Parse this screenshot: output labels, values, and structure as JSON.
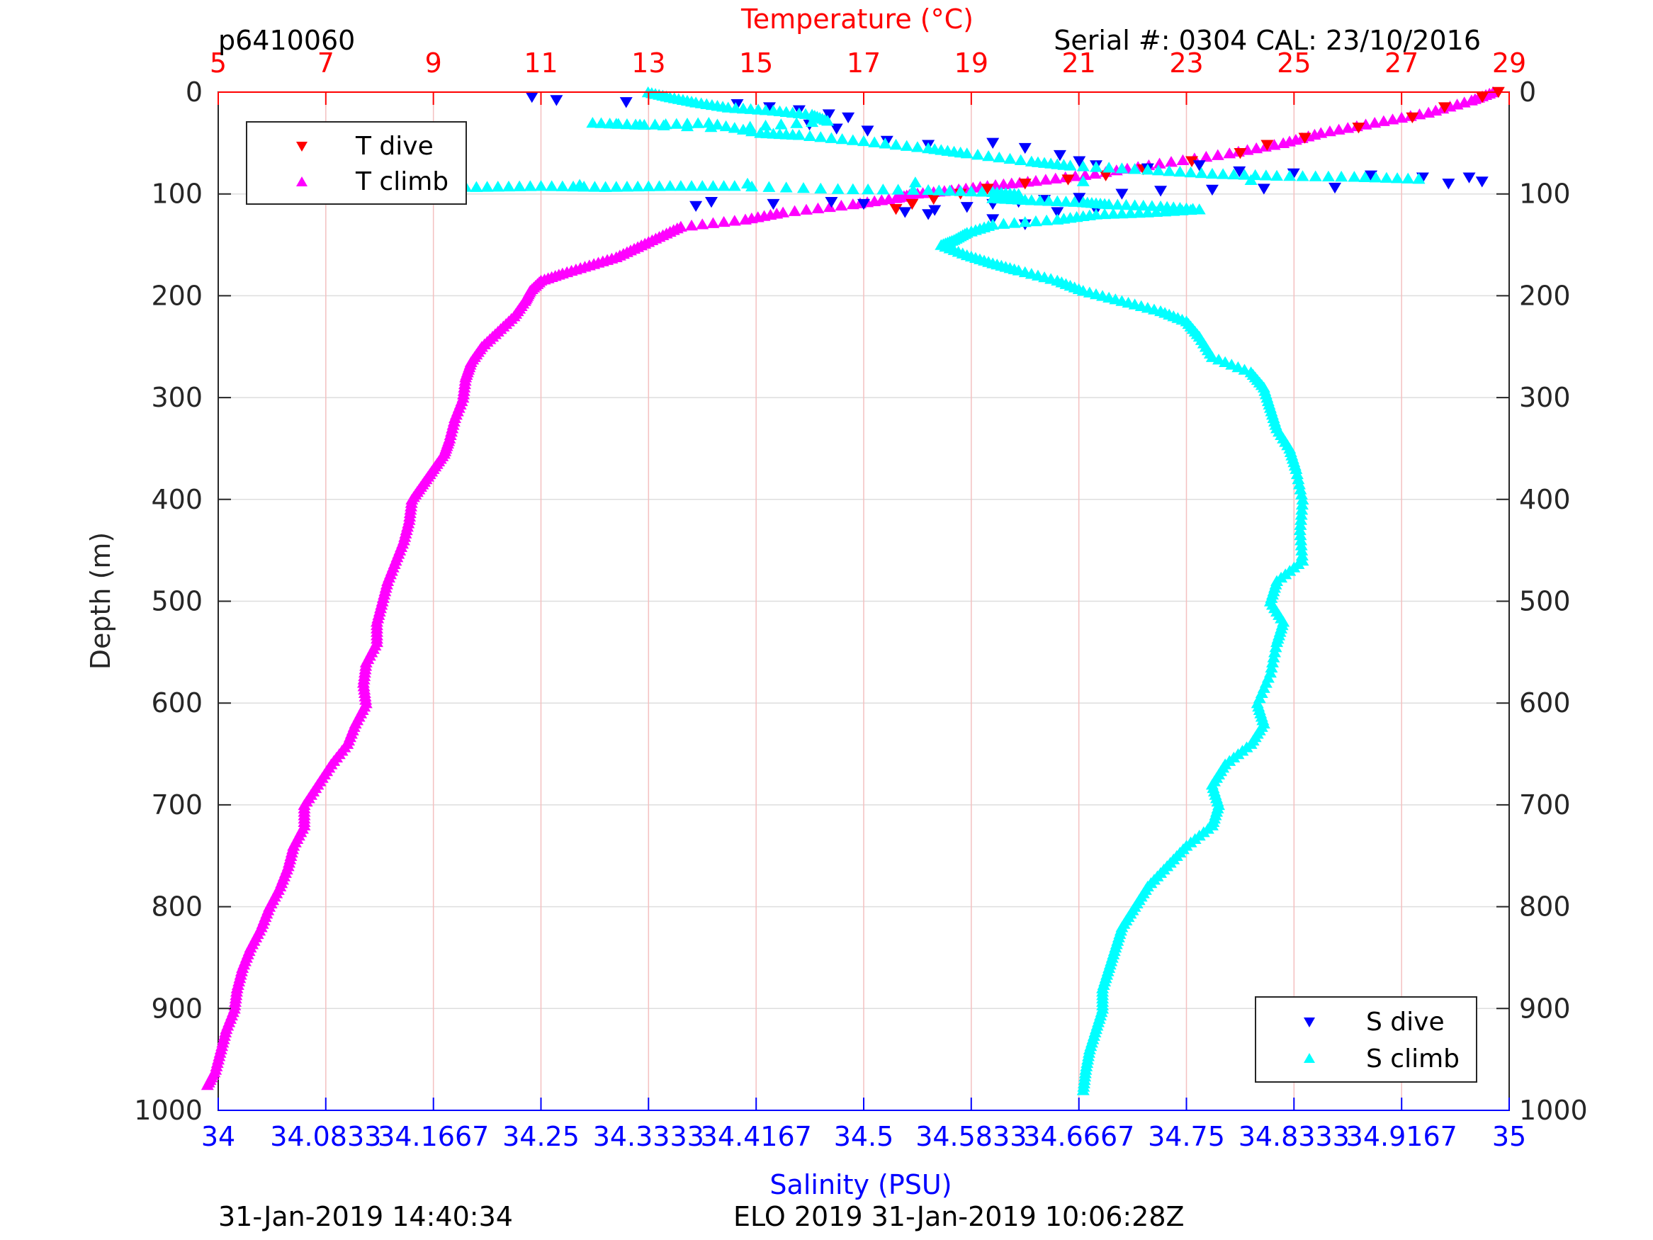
{
  "chart_data": {
    "type": "scatter",
    "title_left": "p6410060",
    "title_right": "Serial #: 0304  CAL: 23/10/2016",
    "ylabel": "Depth (m)",
    "ylim": [
      0,
      1000
    ],
    "y_ticks": [
      0,
      100,
      200,
      300,
      400,
      500,
      600,
      700,
      800,
      900,
      1000
    ],
    "y_reversed": true,
    "top_axis": {
      "label": "Temperature (°C)",
      "color": "#ff0000",
      "lim": [
        5,
        29
      ],
      "ticks": [
        5,
        7,
        9,
        11,
        13,
        15,
        17,
        19,
        21,
        23,
        25,
        27,
        29
      ]
    },
    "bottom_axis": {
      "label": "Salinity (PSU)",
      "color": "#0000ff",
      "lim": [
        34,
        35
      ],
      "ticks": [
        "34",
        "34.0833",
        "34.1667",
        "34.25",
        "34.3333",
        "34.4167",
        "34.5",
        "34.5833",
        "34.6667",
        "34.75",
        "34.8333",
        "34.9167",
        "35"
      ]
    },
    "grid": true,
    "legend_temperature": {
      "placement": "top-left",
      "entries": [
        {
          "label": "T dive",
          "color": "#ff0000",
          "marker": "triangle-down"
        },
        {
          "label": "T climb",
          "color": "#ff00ff",
          "marker": "triangle-up"
        }
      ]
    },
    "legend_salinity": {
      "placement": "bottom-right",
      "entries": [
        {
          "label": "S dive",
          "color": "#0000ff",
          "marker": "triangle-down"
        },
        {
          "label": "S climb",
          "color": "#00ffff",
          "marker": "triangle-up"
        }
      ]
    },
    "series": [
      {
        "name": "T climb",
        "axis": "temperature",
        "color": "#ff00ff",
        "marker": "triangle-up",
        "points": [
          [
            28.7,
            0
          ],
          [
            28.3,
            8
          ],
          [
            27.5,
            20
          ],
          [
            26.5,
            30
          ],
          [
            25.5,
            40
          ],
          [
            24.8,
            50
          ],
          [
            23.8,
            60
          ],
          [
            22.5,
            70
          ],
          [
            21.3,
            80
          ],
          [
            20.2,
            87
          ],
          [
            19.3,
            92
          ],
          [
            18.5,
            97
          ],
          [
            17.9,
            100
          ],
          [
            17.6,
            104
          ],
          [
            16.8,
            110
          ],
          [
            15.5,
            118
          ],
          [
            14.8,
            125
          ],
          [
            13.6,
            132
          ],
          [
            13.2,
            142
          ],
          [
            12.8,
            152
          ],
          [
            12.4,
            162
          ],
          [
            11.9,
            170
          ],
          [
            11.4,
            178
          ],
          [
            11,
            185
          ],
          [
            10.8,
            195
          ],
          [
            10.7,
            205
          ],
          [
            10.5,
            220
          ],
          [
            10.2,
            235
          ],
          [
            9.9,
            250
          ],
          [
            9.7,
            265
          ],
          [
            9.6,
            280
          ],
          [
            9.55,
            300
          ],
          [
            9.4,
            320
          ],
          [
            9.3,
            340
          ],
          [
            9.2,
            355
          ],
          [
            9.0,
            370
          ],
          [
            8.8,
            385
          ],
          [
            8.6,
            400
          ],
          [
            8.55,
            420
          ],
          [
            8.45,
            440
          ],
          [
            8.3,
            460
          ],
          [
            8.15,
            480
          ],
          [
            8.05,
            500
          ],
          [
            7.95,
            520
          ],
          [
            7.95,
            540
          ],
          [
            7.75,
            560
          ],
          [
            7.7,
            580
          ],
          [
            7.75,
            600
          ],
          [
            7.55,
            620
          ],
          [
            7.4,
            640
          ],
          [
            7.1,
            660
          ],
          [
            6.85,
            680
          ],
          [
            6.6,
            700
          ],
          [
            6.6,
            720
          ],
          [
            6.4,
            740
          ],
          [
            6.3,
            760
          ],
          [
            6.15,
            780
          ],
          [
            5.95,
            800
          ],
          [
            5.8,
            820
          ],
          [
            5.6,
            840
          ],
          [
            5.45,
            860
          ],
          [
            5.35,
            880
          ],
          [
            5.3,
            900
          ],
          [
            5.15,
            920
          ],
          [
            5.05,
            940
          ],
          [
            4.95,
            960
          ],
          [
            4.8,
            975
          ]
        ]
      },
      {
        "name": "T dive",
        "axis": "temperature",
        "color": "#ff0000",
        "marker": "triangle-down",
        "points": [
          [
            28.8,
            0
          ],
          [
            28.5,
            5
          ],
          [
            27.8,
            15
          ],
          [
            27.2,
            25
          ],
          [
            26.2,
            35
          ],
          [
            25.2,
            45
          ],
          [
            24.5,
            52
          ],
          [
            24.0,
            60
          ],
          [
            23.1,
            68
          ],
          [
            22.2,
            76
          ],
          [
            21.5,
            82
          ],
          [
            20.8,
            86
          ],
          [
            20.0,
            90
          ],
          [
            19.3,
            95
          ],
          [
            18.8,
            100
          ],
          [
            18.3,
            105
          ],
          [
            17.9,
            110
          ],
          [
            17.6,
            115
          ]
        ]
      },
      {
        "name": "S dive",
        "axis": "salinity",
        "color": "#0000ff",
        "marker": "triangle-down",
        "points": [
          [
            34.243,
            5
          ],
          [
            34.262,
            8
          ],
          [
            34.316,
            10
          ],
          [
            34.402,
            12
          ],
          [
            34.427,
            15
          ],
          [
            34.45,
            18
          ],
          [
            34.473,
            22
          ],
          [
            34.488,
            25
          ],
          [
            34.458,
            32
          ],
          [
            34.479,
            36
          ],
          [
            34.503,
            38
          ],
          [
            34.518,
            48
          ],
          [
            34.55,
            52
          ],
          [
            34.6,
            50
          ],
          [
            34.625,
            55
          ],
          [
            34.652,
            62
          ],
          [
            34.667,
            68
          ],
          [
            34.68,
            72
          ],
          [
            34.72,
            75
          ],
          [
            34.76,
            72
          ],
          [
            34.791,
            78
          ],
          [
            34.833,
            80
          ],
          [
            34.893,
            82
          ],
          [
            34.933,
            84
          ],
          [
            34.969,
            84
          ],
          [
            34.979,
            88
          ],
          [
            34.953,
            90
          ],
          [
            34.865,
            94
          ],
          [
            34.81,
            95
          ],
          [
            34.77,
            96
          ],
          [
            34.73,
            97
          ],
          [
            34.7,
            100
          ],
          [
            34.667,
            104
          ],
          [
            34.64,
            106
          ],
          [
            34.62,
            108
          ],
          [
            34.6,
            110
          ],
          [
            34.58,
            113
          ],
          [
            34.555,
            116
          ],
          [
            34.532,
            118
          ],
          [
            34.5,
            110
          ],
          [
            34.475,
            108
          ],
          [
            34.43,
            110
          ],
          [
            34.382,
            108
          ],
          [
            34.37,
            112
          ],
          [
            34.65,
            118
          ],
          [
            34.68,
            116
          ],
          [
            34.55,
            120
          ],
          [
            34.6,
            125
          ],
          [
            34.625,
            130
          ]
        ]
      },
      {
        "name": "S climb",
        "axis": "salinity",
        "color": "#00ffff",
        "marker": "triangle-up",
        "points": [
          [
            34.333,
            0
          ],
          [
            34.35,
            5
          ],
          [
            34.37,
            10
          ],
          [
            34.395,
            15
          ],
          [
            34.43,
            18
          ],
          [
            34.46,
            22
          ],
          [
            34.472,
            28
          ],
          [
            34.4,
            35
          ],
          [
            34.29,
            30
          ],
          [
            34.33,
            32
          ],
          [
            34.38,
            30
          ],
          [
            34.42,
            40
          ],
          [
            34.45,
            42
          ],
          [
            34.5,
            48
          ],
          [
            34.55,
            55
          ],
          [
            34.58,
            60
          ],
          [
            34.63,
            68
          ],
          [
            34.66,
            72
          ],
          [
            34.72,
            76
          ],
          [
            34.77,
            80
          ],
          [
            34.82,
            82
          ],
          [
            34.88,
            83
          ],
          [
            34.93,
            85
          ],
          [
            34.15,
            92
          ],
          [
            34.2,
            93
          ],
          [
            34.25,
            92
          ],
          [
            34.3,
            93
          ],
          [
            34.35,
            92
          ],
          [
            34.4,
            92
          ],
          [
            34.48,
            95
          ],
          [
            34.55,
            96
          ],
          [
            34.6,
            98
          ],
          [
            34.62,
            100
          ],
          [
            34.6,
            104
          ],
          [
            34.63,
            106
          ],
          [
            34.67,
            108
          ],
          [
            34.69,
            110
          ],
          [
            34.73,
            112
          ],
          [
            34.76,
            115
          ],
          [
            34.72,
            118
          ],
          [
            34.68,
            120
          ],
          [
            34.65,
            125
          ],
          [
            34.6,
            130
          ],
          [
            34.58,
            138
          ],
          [
            34.57,
            145
          ],
          [
            34.56,
            150
          ],
          [
            34.58,
            160
          ],
          [
            34.6,
            168
          ],
          [
            34.62,
            175
          ],
          [
            34.65,
            185
          ],
          [
            34.67,
            195
          ],
          [
            34.7,
            205
          ],
          [
            34.73,
            215
          ],
          [
            34.75,
            225
          ],
          [
            34.76,
            240
          ],
          [
            34.77,
            260
          ],
          [
            34.8,
            275
          ],
          [
            34.81,
            290
          ],
          [
            34.815,
            310
          ],
          [
            34.82,
            330
          ],
          [
            34.83,
            350
          ],
          [
            34.835,
            370
          ],
          [
            34.84,
            400
          ],
          [
            34.838,
            430
          ],
          [
            34.84,
            460
          ],
          [
            34.82,
            480
          ],
          [
            34.815,
            500
          ],
          [
            34.825,
            520
          ],
          [
            34.82,
            540
          ],
          [
            34.815,
            570
          ],
          [
            34.805,
            600
          ],
          [
            34.81,
            620
          ],
          [
            34.8,
            640
          ],
          [
            34.78,
            660
          ],
          [
            34.77,
            680
          ],
          [
            34.775,
            700
          ],
          [
            34.77,
            720
          ],
          [
            34.75,
            740
          ],
          [
            34.735,
            760
          ],
          [
            34.72,
            780
          ],
          [
            34.71,
            800
          ],
          [
            34.7,
            820
          ],
          [
            34.695,
            840
          ],
          [
            34.69,
            860
          ],
          [
            34.685,
            880
          ],
          [
            34.685,
            900
          ],
          [
            34.68,
            920
          ],
          [
            34.675,
            940
          ],
          [
            34.672,
            960
          ],
          [
            34.67,
            980
          ]
        ]
      }
    ]
  },
  "footer": {
    "left": "31-Jan-2019 14:40:34",
    "center": "ELO 2019 31-Jan-2019 10:06:28Z"
  }
}
